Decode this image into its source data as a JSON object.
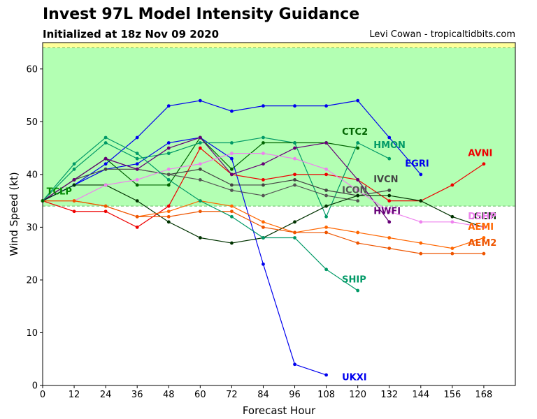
{
  "header": {
    "title": "Invest 97L Model Intensity Guidance",
    "subtitle": "Initialized at 18z Nov 09 2020",
    "credit": "Levi Cowan - tropicaltidbits.com"
  },
  "chart_data": {
    "type": "line",
    "title": "Invest 97L Model Intensity Guidance",
    "subtitle": "Initialized at 18z Nov 09 2020",
    "xlabel": "Forecast Hour",
    "ylabel": "Wind Speed (kt)",
    "xlim": [
      0,
      180
    ],
    "ylim": [
      0,
      65
    ],
    "xticks": [
      0,
      12,
      24,
      36,
      48,
      60,
      72,
      84,
      96,
      108,
      120,
      132,
      144,
      156,
      168
    ],
    "yticks": [
      0,
      10,
      20,
      30,
      40,
      50,
      60
    ],
    "bands": [
      {
        "from": 34,
        "to": 64,
        "color": "#b3ffb3"
      },
      {
        "from": 64,
        "to": 65,
        "color": "#ffff99"
      }
    ],
    "series": [
      {
        "name": "UKXI",
        "color": "#0000ee",
        "x": [
          0,
          12,
          24,
          36,
          48,
          60,
          72,
          84,
          96,
          108
        ],
        "y": [
          35,
          38,
          41,
          42,
          46,
          47,
          43,
          23,
          4,
          2
        ],
        "label_x": 114,
        "label_y": 1
      },
      {
        "name": "EGRI",
        "color": "#0000ee",
        "x": [
          0,
          12,
          24,
          36,
          48,
          60,
          72,
          84,
          96,
          108,
          120,
          132,
          144
        ],
        "y": [
          35,
          38,
          42,
          47,
          53,
          54,
          52,
          53,
          53,
          53,
          54,
          47,
          40
        ],
        "label_x": 138,
        "label_y": 41.5
      },
      {
        "name": "AVNI",
        "color": "#ee0000",
        "x": [
          0,
          12,
          24,
          36,
          48,
          60,
          72,
          84,
          96,
          108,
          120,
          132,
          144,
          156,
          168
        ],
        "y": [
          35,
          33,
          33,
          30,
          34,
          45,
          40,
          39,
          40,
          40,
          39,
          35,
          35,
          38,
          42
        ],
        "label_x": 162,
        "label_y": 43.5
      },
      {
        "name": "CTC2",
        "color": "#006400",
        "x": [
          0,
          12,
          24,
          36,
          48,
          60,
          72,
          84,
          96,
          108,
          120
        ],
        "y": [
          35,
          39,
          43,
          38,
          38,
          47,
          41,
          46,
          46,
          46,
          45
        ],
        "label_x": 114,
        "label_y": 47.5
      },
      {
        "name": "HMON",
        "color": "#009966",
        "x": [
          0,
          12,
          24,
          36,
          48,
          60,
          72,
          84,
          96,
          108,
          120,
          132
        ],
        "y": [
          35,
          41,
          46,
          43,
          44,
          46,
          46,
          47,
          46,
          32,
          46,
          43
        ],
        "label_x": 126,
        "label_y": 45
      },
      {
        "name": "IVCN",
        "color": "#444444",
        "x": [
          0,
          12,
          24,
          36,
          48,
          60,
          72,
          84,
          96,
          108,
          120,
          132
        ],
        "y": [
          35,
          39,
          41,
          41,
          40,
          41,
          38,
          38,
          39,
          37,
          36,
          37
        ],
        "label_x": 126,
        "label_y": 38.5
      },
      {
        "name": "ICON",
        "color": "#555555",
        "x": [
          0,
          12,
          24,
          36,
          48,
          60,
          72,
          84,
          96,
          108,
          120
        ],
        "y": [
          35,
          39,
          43,
          41,
          40,
          39,
          37,
          36,
          38,
          36,
          35
        ],
        "label_x": 114,
        "label_y": 36.5
      },
      {
        "name": "HWFI",
        "color": "#660077",
        "x": [
          0,
          12,
          24,
          36,
          48,
          60,
          72,
          84,
          96,
          108,
          120,
          132
        ],
        "y": [
          35,
          39,
          43,
          41,
          45,
          47,
          40,
          42,
          45,
          46,
          39,
          31
        ],
        "label_x": 126,
        "label_y": 32.5
      },
      {
        "name": "LGEM",
        "color": "#003300",
        "x": [
          0,
          12,
          24,
          36,
          48,
          60,
          72,
          84,
          96,
          108,
          120,
          132,
          144,
          156,
          168
        ],
        "y": [
          35,
          38,
          38,
          35,
          31,
          28,
          27,
          28,
          31,
          34,
          36,
          36,
          35,
          32,
          30
        ],
        "label_x": 162,
        "label_y": 31.5
      },
      {
        "name": "DSHP",
        "color": "#ee82ee",
        "x": [
          0,
          12,
          24,
          36,
          48,
          60,
          72,
          84,
          96,
          108,
          120,
          132,
          144,
          156,
          168
        ],
        "y": [
          35,
          35,
          38,
          39,
          41,
          42,
          44,
          44,
          43,
          41,
          37,
          33,
          31,
          31,
          30
        ],
        "label_x": 162,
        "label_y": 31.5
      },
      {
        "name": "AEMI",
        "color": "#ff6600",
        "x": [
          0,
          12,
          24,
          36,
          48,
          60,
          72,
          84,
          96,
          108,
          120,
          132,
          144,
          156,
          168
        ],
        "y": [
          35,
          35,
          34,
          32,
          33,
          35,
          34,
          31,
          29,
          30,
          29,
          28,
          27,
          26,
          28
        ],
        "label_x": 162,
        "label_y": 29.5
      },
      {
        "name": "AEM2",
        "color": "#ee5500",
        "x": [
          0,
          12,
          24,
          36,
          48,
          60,
          72,
          84,
          96,
          108,
          120,
          132,
          144,
          156,
          168
        ],
        "y": [
          35,
          35,
          34,
          32,
          32,
          33,
          33,
          30,
          29,
          29,
          27,
          26,
          25,
          25,
          25
        ],
        "label_x": 162,
        "label_y": 26.5
      },
      {
        "name": "SHIP",
        "color": "#009966",
        "x": [
          0,
          12,
          24,
          36,
          48,
          60,
          72,
          84,
          96,
          108,
          120
        ],
        "y": [
          35,
          42,
          47,
          44,
          39,
          35,
          32,
          28,
          28,
          22,
          18
        ],
        "label_x": 114,
        "label_y": 19.5
      },
      {
        "name": "TCLP",
        "color": "#008800",
        "x": [
          0
        ],
        "y": [
          35
        ],
        "label_x": 1.5,
        "label_y": 36.2
      }
    ],
    "grid": false,
    "legend": "none"
  }
}
